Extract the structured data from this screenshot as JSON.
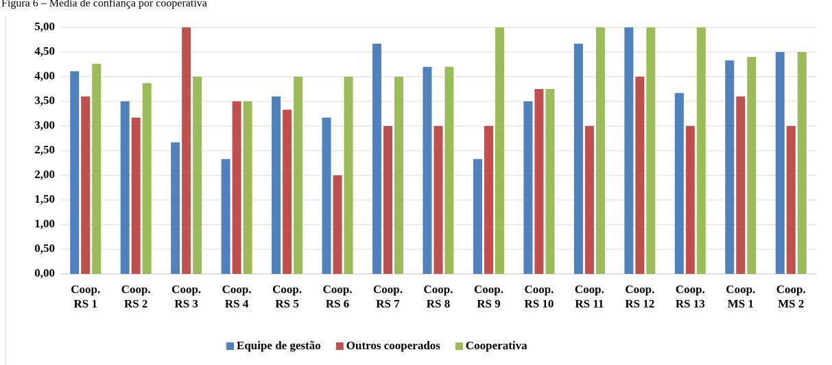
{
  "chart_data": {
    "type": "bar",
    "title": "Figura 6 – Média de confiança por cooperativa",
    "categories": [
      "Coop. RS 1",
      "Coop. RS 2",
      "Coop. RS 3",
      "Coop. RS 4",
      "Coop. RS 5",
      "Coop. RS 6",
      "Coop. RS 7",
      "Coop. RS 8",
      "Coop. RS 9",
      "Coop. RS 10",
      "Coop. RS 11",
      "Coop. RS 12",
      "Coop. RS 13",
      "Coop. MS 1",
      "Coop. MS 2"
    ],
    "series": [
      {
        "name": "Equipe de gestão",
        "color": "#4f81bd",
        "values": [
          4.11,
          3.5,
          2.67,
          2.33,
          3.6,
          3.17,
          4.67,
          4.2,
          2.33,
          3.5,
          4.67,
          5.0,
          3.67,
          4.33,
          4.5
        ]
      },
      {
        "name": "Outros cooperados",
        "color": "#c0504d",
        "values": [
          3.6,
          3.17,
          5.0,
          3.5,
          3.33,
          2.0,
          3.0,
          3.0,
          3.0,
          3.75,
          3.0,
          4.0,
          3.0,
          3.6,
          3.0
        ]
      },
      {
        "name": "Cooperativa",
        "color": "#9bbb59",
        "values": [
          4.26,
          3.87,
          4.0,
          3.5,
          4.0,
          4.0,
          4.0,
          4.2,
          5.0,
          3.75,
          5.0,
          5.0,
          5.0,
          4.4,
          4.5
        ]
      }
    ],
    "ylim": [
      0,
      5
    ],
    "yticks": [
      {
        "value": 0,
        "label": "0,00"
      },
      {
        "value": 0.5,
        "label": "0,50"
      },
      {
        "value": 1,
        "label": "1,00"
      },
      {
        "value": 1.5,
        "label": "1,50"
      },
      {
        "value": 2,
        "label": "2,00"
      },
      {
        "value": 2.5,
        "label": "2,50"
      },
      {
        "value": 3,
        "label": "3,00"
      },
      {
        "value": 3.5,
        "label": "3,50"
      },
      {
        "value": 4,
        "label": "4,00"
      },
      {
        "value": 4.5,
        "label": "4,50"
      },
      {
        "value": 5,
        "label": "5,00"
      }
    ],
    "grid": true,
    "legend": "bottom"
  }
}
